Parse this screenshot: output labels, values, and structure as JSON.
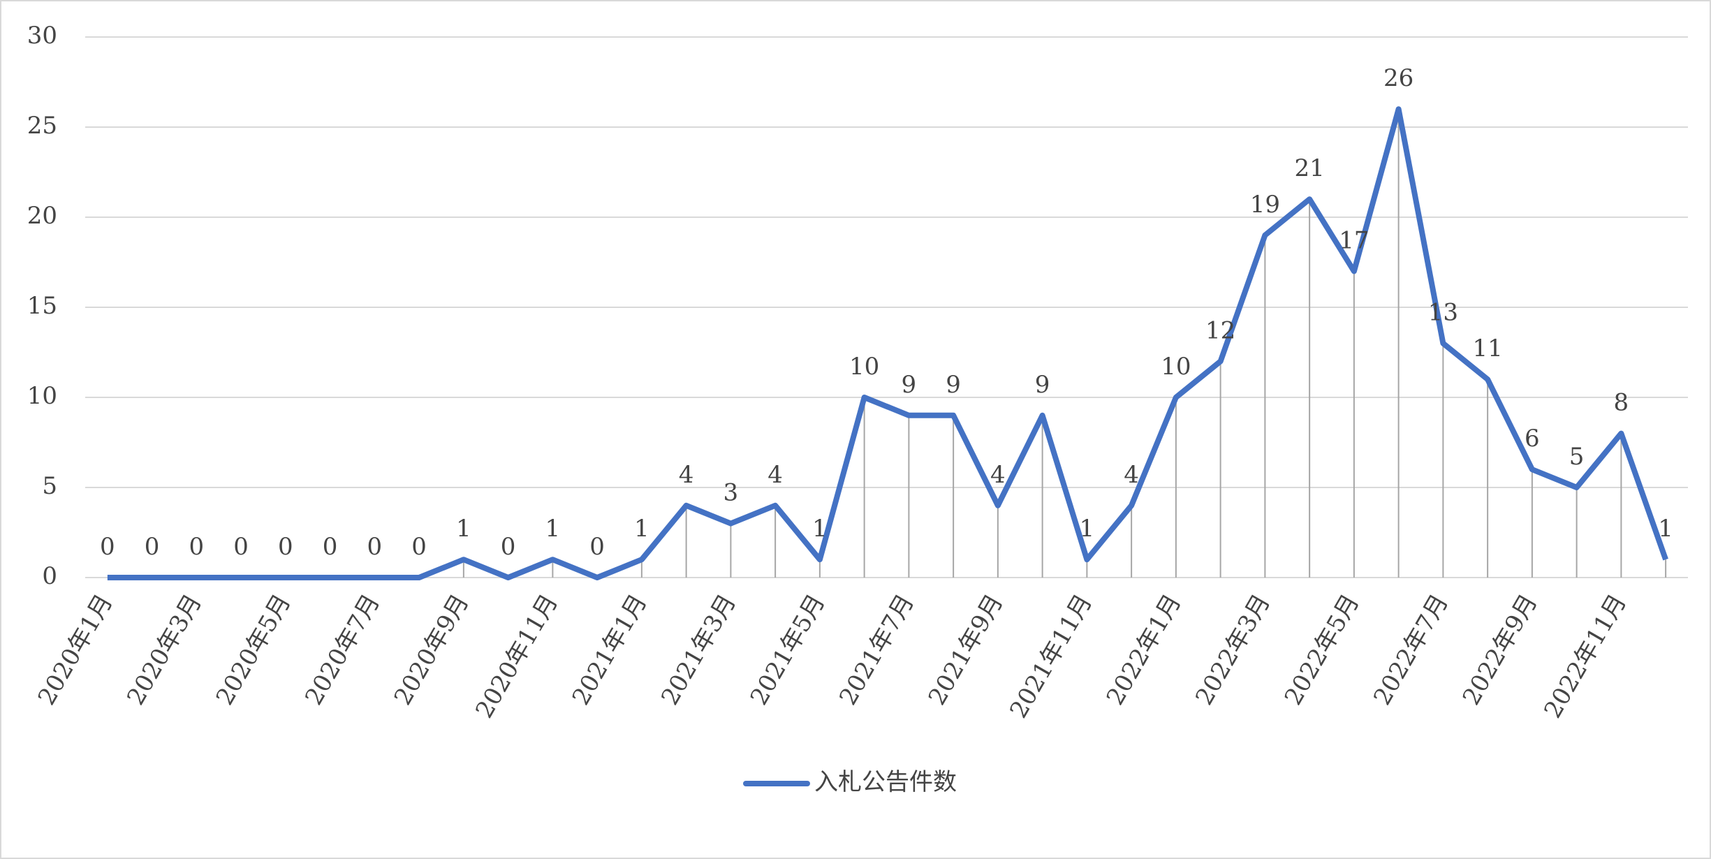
{
  "chart_data": {
    "type": "line",
    "categories": [
      "2020年1月",
      null,
      "2020年3月",
      null,
      "2020年5月",
      null,
      "2020年7月",
      null,
      "2020年9月",
      null,
      "2020年11月",
      null,
      "2021年1月",
      null,
      "2021年3月",
      null,
      "2021年5月",
      null,
      "2021年7月",
      null,
      "2021年9月",
      null,
      "2021年11月",
      null,
      "2022年1月",
      null,
      "2022年3月",
      null,
      "2022年5月",
      null,
      "2022年7月",
      null,
      "2022年9月",
      null,
      "2022年11月",
      null
    ],
    "series": [
      {
        "name": "入札公告件数",
        "color": "#4472c4",
        "values": [
          0,
          0,
          0,
          0,
          0,
          0,
          0,
          0,
          1,
          0,
          1,
          0,
          1,
          4,
          3,
          4,
          1,
          10,
          9,
          9,
          4,
          9,
          1,
          4,
          10,
          12,
          19,
          21,
          17,
          26,
          13,
          11,
          6,
          5,
          8,
          1
        ]
      }
    ],
    "ylim": [
      0,
      30
    ],
    "yticks": [
      0,
      5,
      10,
      15,
      20,
      25,
      30
    ],
    "grid": true,
    "drop_lines": true,
    "legend": "bottom"
  }
}
